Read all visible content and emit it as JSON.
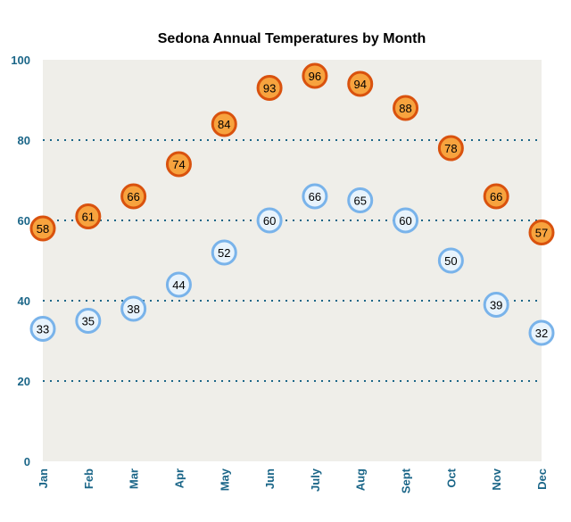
{
  "chart_data": {
    "type": "scatter",
    "title": "Sedona Annual Temperatures by Month",
    "categories": [
      "Jan",
      "Feb",
      "Mar",
      "Apr",
      "May",
      "Jun",
      "July",
      "Aug",
      "Sept",
      "Oct",
      "Nov",
      "Dec"
    ],
    "series": [
      {
        "values": [
          58,
          61,
          66,
          74,
          84,
          93,
          96,
          94,
          88,
          78,
          66,
          57
        ],
        "color": "#f7a33e",
        "stroke": "#d9520e"
      },
      {
        "values": [
          33,
          35,
          38,
          44,
          52,
          60,
          66,
          65,
          60,
          50,
          39,
          32
        ],
        "color": "#e8f3fc",
        "stroke": "#79b3ea"
      }
    ],
    "ylim": [
      0,
      100
    ],
    "yticks": [
      0,
      20,
      40,
      60,
      80,
      100
    ],
    "grid": true,
    "grid_color": "#1b6688",
    "plot_background": "#efeee9"
  }
}
